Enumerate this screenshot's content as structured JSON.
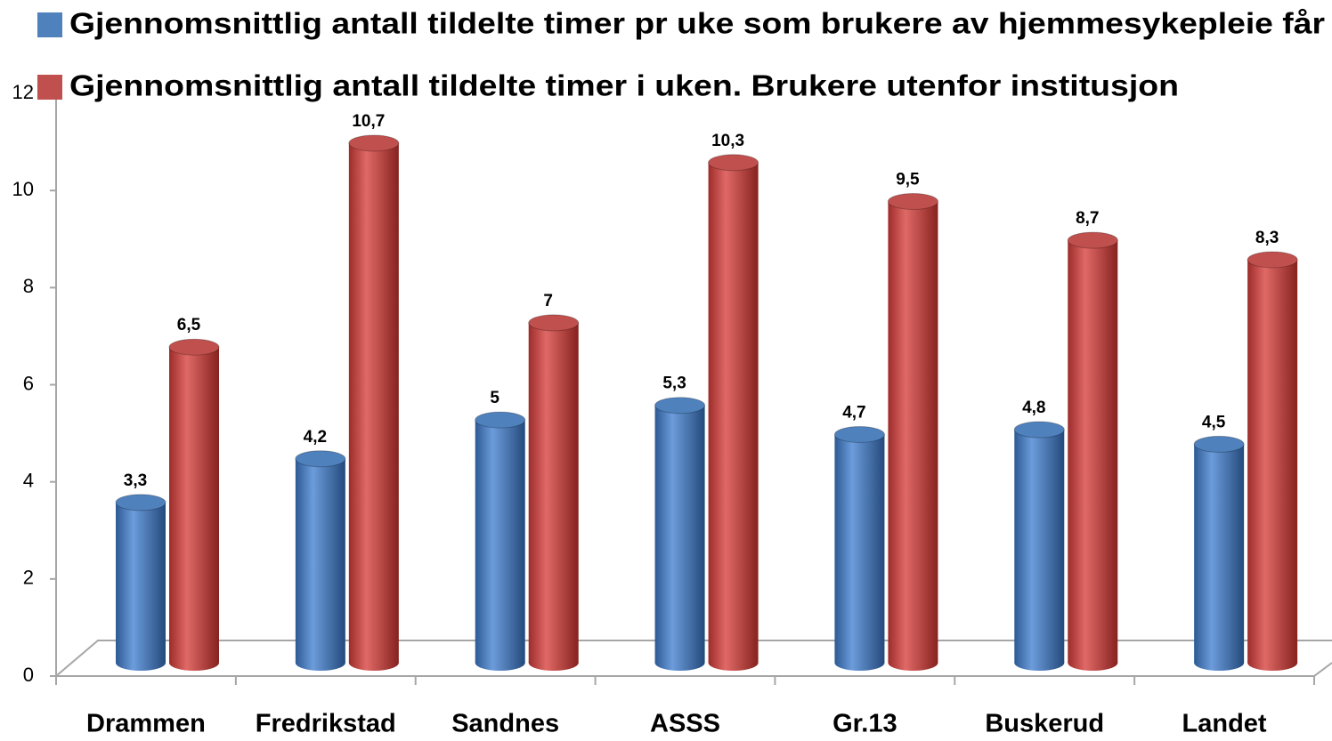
{
  "chart_data": {
    "type": "bar3d",
    "categories": [
      "Drammen",
      "Fredrikstad",
      "Sandnes",
      "ASSS",
      "Gr.13",
      "Buskerud",
      "Landet"
    ],
    "series": [
      {
        "name": "Gjennomsnittlig antall tildelte timer pr uke som brukere av hjemmesykepleie får",
        "color": "#4f81bd",
        "values": [
          3.3,
          4.2,
          5,
          5.3,
          4.7,
          4.8,
          4.5
        ],
        "value_labels": [
          "3,3",
          "4,2",
          "5",
          "5,3",
          "4,7",
          "4,8",
          "4,5"
        ]
      },
      {
        "name": "Gjennomsnittlig antall tildelte timer i uken. Brukere utenfor institusjon",
        "color": "#c0504d",
        "values": [
          6.5,
          10.7,
          7,
          10.3,
          9.5,
          8.7,
          8.3
        ],
        "value_labels": [
          "6,5",
          "10,7",
          "7",
          "10,3",
          "9,5",
          "8,7",
          "8,3"
        ]
      }
    ],
    "ylim": [
      0,
      12
    ],
    "yticks": [
      0,
      2,
      4,
      6,
      8,
      10,
      12
    ]
  }
}
